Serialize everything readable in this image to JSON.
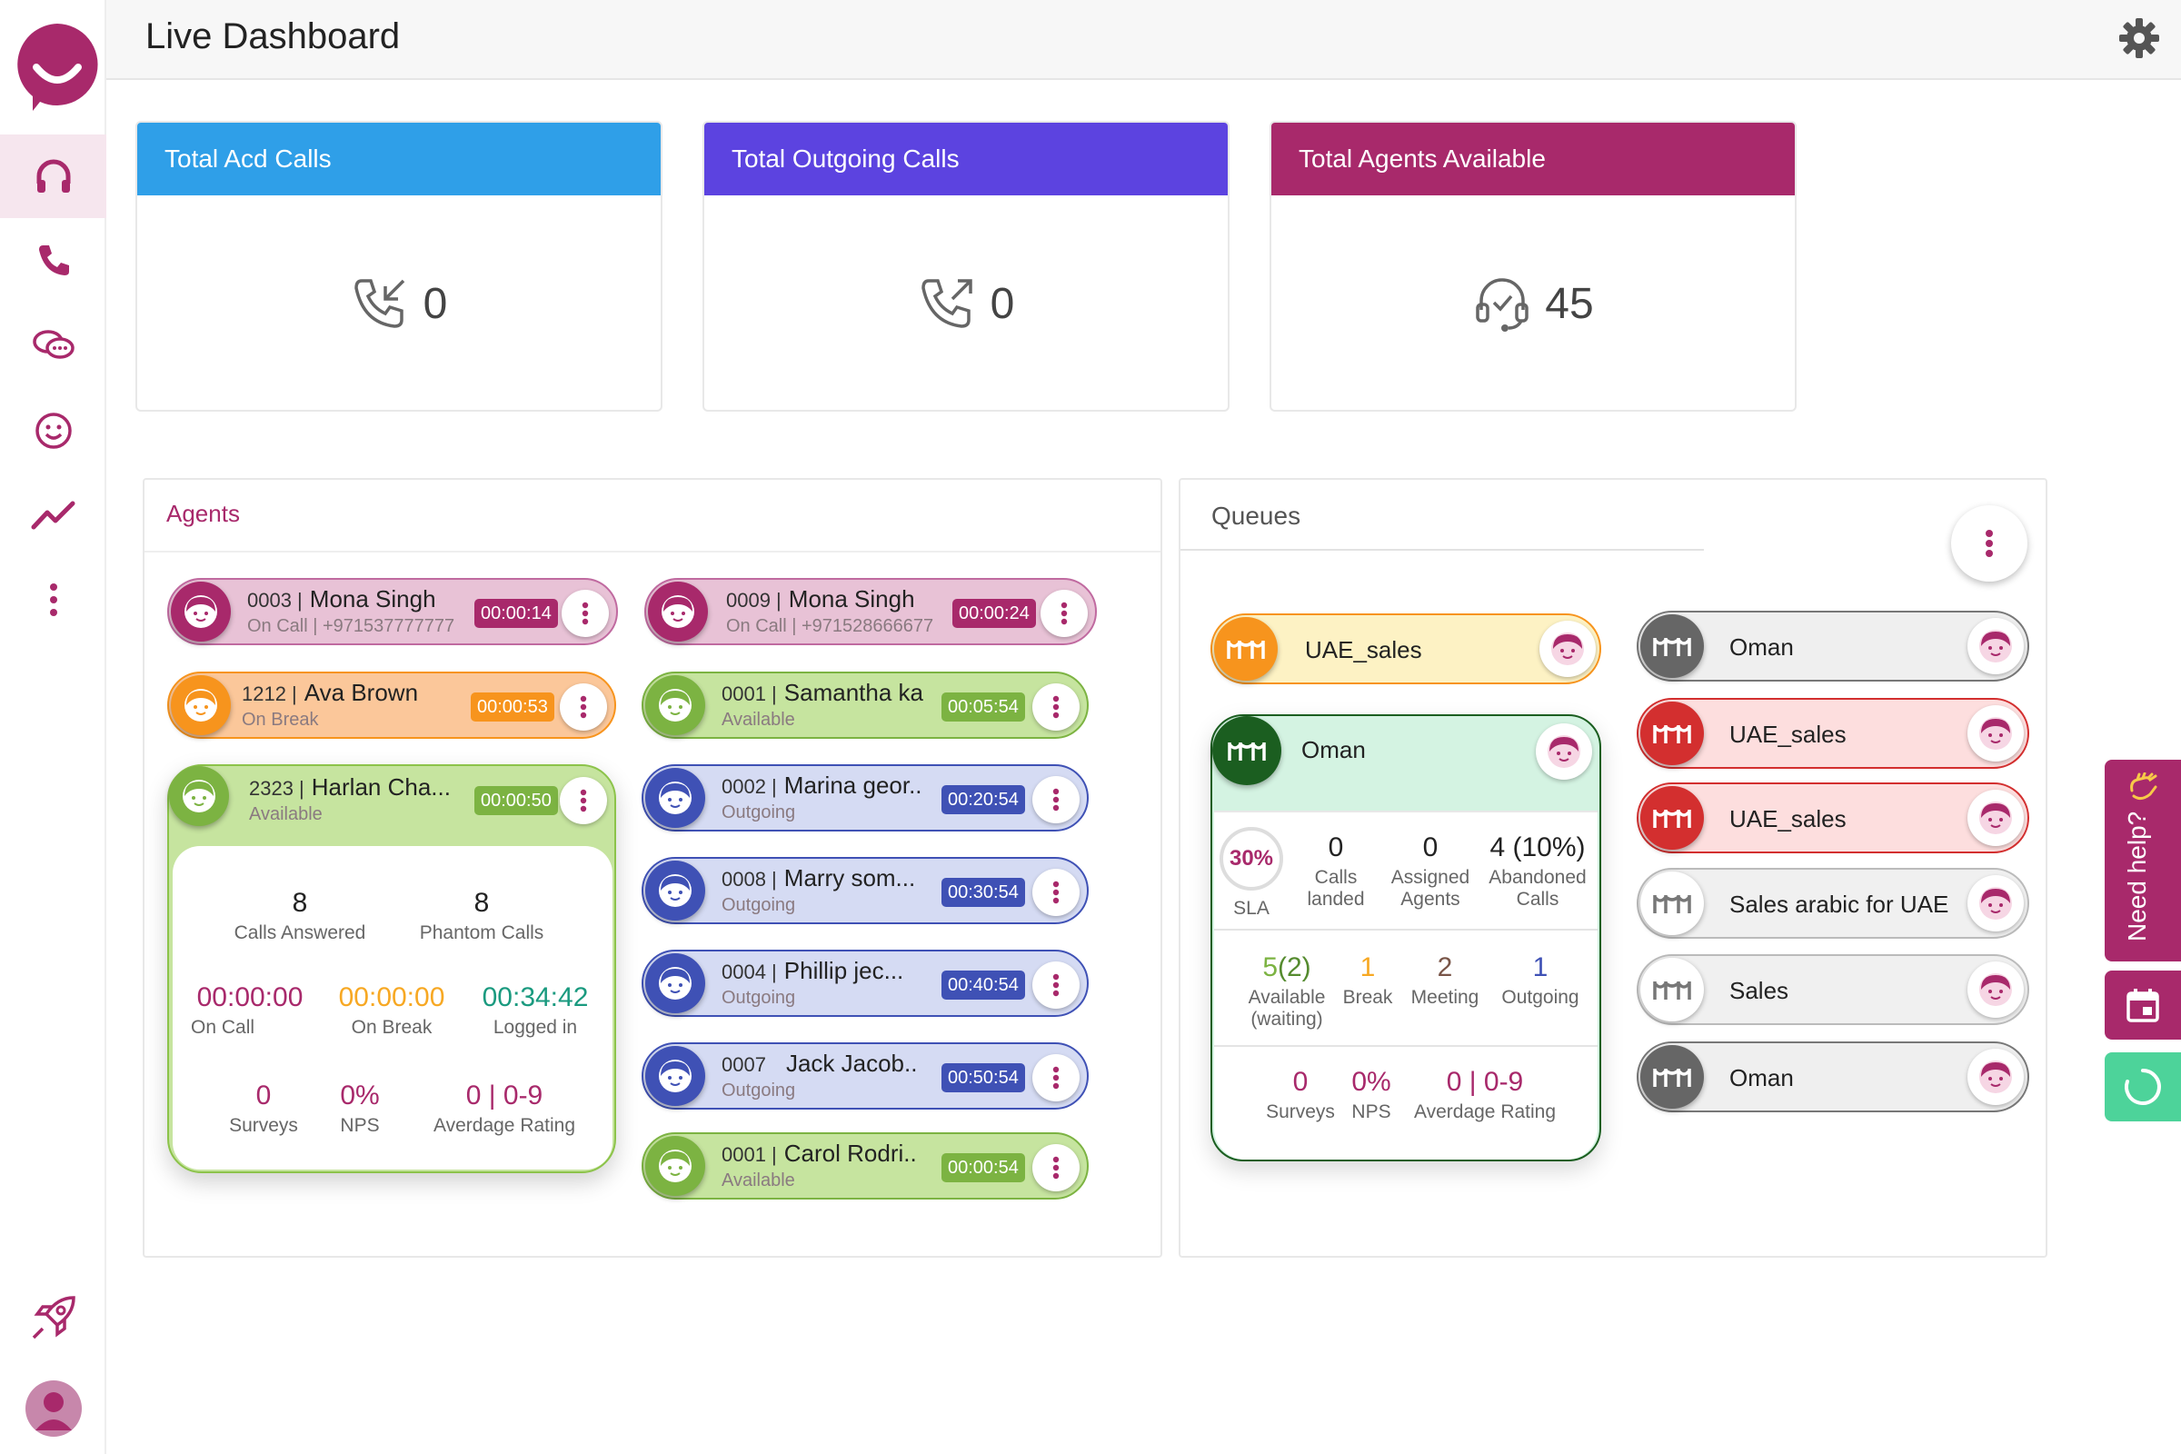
{
  "header": {
    "title": "Live Dashboard",
    "settings_icon": "gear-icon"
  },
  "sidebar": {
    "items": [
      {
        "name": "headset",
        "icon": "headset-icon"
      },
      {
        "name": "phone",
        "icon": "phone-icon"
      },
      {
        "name": "chat",
        "icon": "chat-icon"
      },
      {
        "name": "smile",
        "icon": "smile-icon"
      },
      {
        "name": "analytics",
        "icon": "trend-icon"
      },
      {
        "name": "more",
        "icon": "more-icon"
      }
    ]
  },
  "stats": [
    {
      "title": "Total Acd Calls",
      "value": "0",
      "color": "#2f9fe8",
      "icon": "incoming-call-icon"
    },
    {
      "title": "Total Outgoing Calls",
      "value": "0",
      "color": "#5c43e0",
      "icon": "outgoing-call-icon"
    },
    {
      "title": "Total Agents Available",
      "value": "45",
      "color": "#a8296b",
      "icon": "agent-headset-icon"
    }
  ],
  "agents_panel": {
    "title": "Agents"
  },
  "agents": [
    {
      "id": "0003 |",
      "name": "Mona Singh",
      "status": "On Call | +971537777777",
      "time": "00:00:14"
    },
    {
      "id": "1212 |",
      "name": "Ava Brown",
      "status": "On Break",
      "time": "00:00:53"
    },
    {
      "id": "2323 |",
      "name": "Harlan Cha...",
      "status": "Available",
      "time": "00:00:50"
    },
    {
      "id": "0009 |",
      "name": "Mona Singh",
      "status": "On Call | +971528666677",
      "time": "00:00:24"
    },
    {
      "id": "0001 |",
      "name": "Samantha ka",
      "status": "Available",
      "time": "00:05:54"
    },
    {
      "id": "0002 |",
      "name": "Marina geor..",
      "status": "Outgoing",
      "time": "00:20:54"
    },
    {
      "id": "0008 |",
      "name": "Marry som...",
      "status": "Outgoing",
      "time": "00:30:54"
    },
    {
      "id": "0004 |",
      "name": "Phillip jec...",
      "status": "Outgoing",
      "time": "00:40:54"
    },
    {
      "id": "0007",
      "name": "Jack Jacob..",
      "status": "Outgoing",
      "time": "00:50:54"
    },
    {
      "id": "0001 |",
      "name": "Carol Rodri..",
      "status": "Available",
      "time": "00:00:54"
    }
  ],
  "agent_detail": {
    "calls_answered": "8",
    "calls_answered_label": "Calls Answered",
    "phantom_calls": "8",
    "phantom_calls_label": "Phantom Calls",
    "on_call": "00:00:00",
    "on_call_label": "On Call",
    "on_break": "00:00:00",
    "on_break_label": "On Break",
    "logged_in": "00:34:42",
    "logged_in_label": "Logged in",
    "surveys": "0",
    "surveys_label": "Surveys",
    "nps": "0%",
    "nps_label": "NPS",
    "rating": "0 | 0-9",
    "rating_label": "Averdage Rating"
  },
  "queues_panel": {
    "title": "Queues"
  },
  "queues": [
    {
      "name": "UAE_sales"
    },
    {
      "name": "Oman"
    },
    {
      "name": "Oman"
    },
    {
      "name": "UAE_sales"
    },
    {
      "name": "UAE_sales"
    },
    {
      "name": "Sales arabic for  UAE"
    },
    {
      "name": "Sales"
    },
    {
      "name": "Oman"
    }
  ],
  "queue_detail": {
    "sla": "30%",
    "sla_label": "SLA",
    "calls_landed": "0",
    "calls_landed_label": "Calls landed",
    "assigned": "0",
    "assigned_label": "Assigned Agents",
    "abandoned": "4 (10%)",
    "abandoned_label": "Abandoned Calls",
    "available": "5",
    "available_waiting": "(2)",
    "available_label": "Available (waiting)",
    "break": "1",
    "break_label": "Break",
    "meeting": "2",
    "meeting_label": "Meeting",
    "outgoing": "1",
    "outgoing_label": "Outgoing",
    "surveys": "0",
    "surveys_label": "Surveys",
    "nps": "0%",
    "nps_label": "NPS",
    "rating": "0 | 0-9",
    "rating_label": "Averdage Rating"
  },
  "help": {
    "label": "Need help?"
  },
  "colors": {
    "brand": "#a8296b",
    "green": "#7cb342",
    "blue": "#3f51b5",
    "orange": "#f7941d",
    "red": "#d32f2f",
    "teal": "#1a9a7f"
  }
}
